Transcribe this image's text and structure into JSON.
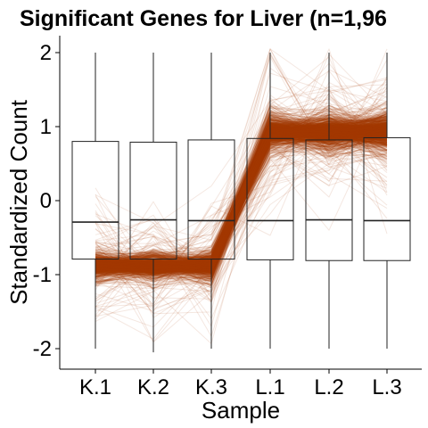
{
  "chart_data": {
    "type": "line",
    "title": "Significant Genes for Liver (n=1,96",
    "xlabel": "Sample",
    "ylabel": "Standardized Count",
    "categories": [
      "K.1",
      "K.2",
      "K.3",
      "L.1",
      "L.2",
      "L.3"
    ],
    "yticks": [
      -2,
      -1,
      0,
      1,
      2
    ],
    "ylim": [
      -2.2,
      2.2
    ],
    "grid": false,
    "line_color": "#a33a00",
    "series_mean": [
      -0.88,
      -0.88,
      -0.88,
      0.93,
      0.93,
      0.93
    ],
    "series_spread": [
      0.07,
      0.07,
      0.07,
      0.1,
      0.1,
      0.1
    ],
    "boxplots": [
      {
        "category": "K.1",
        "min": -2.0,
        "q1": -0.79,
        "median": -0.29,
        "q3": 0.8,
        "max": 2.0
      },
      {
        "category": "K.2",
        "min": -2.05,
        "q1": -0.79,
        "median": -0.26,
        "q3": 0.79,
        "max": 2.0
      },
      {
        "category": "K.3",
        "min": -2.0,
        "q1": -0.79,
        "median": -0.27,
        "q3": 0.82,
        "max": 2.0
      },
      {
        "category": "L.1",
        "min": -2.0,
        "q1": -0.8,
        "median": -0.27,
        "q3": 0.84,
        "max": 2.0
      },
      {
        "category": "L.2",
        "min": -2.0,
        "q1": -0.81,
        "median": -0.26,
        "q3": 0.82,
        "max": 2.0
      },
      {
        "category": "L.3",
        "min": -2.0,
        "q1": -0.81,
        "median": -0.27,
        "q3": 0.85,
        "max": 2.0
      }
    ]
  }
}
